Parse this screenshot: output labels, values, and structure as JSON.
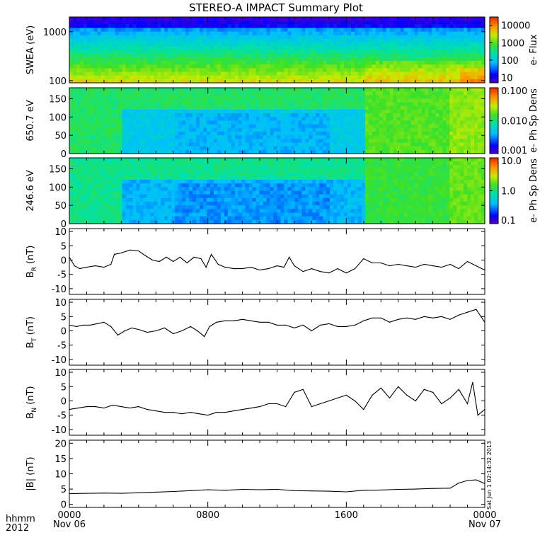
{
  "title": "STEREO-A IMPACT Summary Plot",
  "timestamp": "Sat Jun 1 02:14:32 2013",
  "x_axis": {
    "row1_label": "hhmm",
    "row2_label": "2012",
    "ticks": [
      {
        "hours": 0,
        "label": "0000",
        "sublabel": "Nov 06"
      },
      {
        "hours": 8,
        "label": "0800",
        "sublabel": ""
      },
      {
        "hours": 16,
        "label": "1600",
        "sublabel": ""
      },
      {
        "hours": 24,
        "label": "0000",
        "sublabel": "Nov 07"
      }
    ],
    "range_hours": [
      0,
      24
    ]
  },
  "chart_data": [
    {
      "type": "heatmap",
      "id": "swea",
      "ylabel": "SWEA (eV)",
      "yscale": "log",
      "ylim": [
        90,
        2000
      ],
      "yticks": [
        {
          "value": 100,
          "label": "100"
        },
        {
          "value": 1000,
          "label": "1000"
        }
      ],
      "colorbar": {
        "label": "e- Flux",
        "scale": "log",
        "range": [
          5,
          30000
        ],
        "ticks": [
          {
            "value": 10,
            "label": "10"
          },
          {
            "value": 100,
            "label": "100"
          },
          {
            "value": 1000,
            "label": "1000"
          },
          {
            "value": 10000,
            "label": "10000"
          }
        ]
      }
    },
    {
      "type": "heatmap",
      "id": "pad650",
      "ylabel": "650.7 eV",
      "ylim": [
        0,
        180
      ],
      "yticks": [
        {
          "value": 0,
          "label": "0"
        },
        {
          "value": 50,
          "label": "50"
        },
        {
          "value": 100,
          "label": "100"
        },
        {
          "value": 150,
          "label": "150"
        }
      ],
      "colorbar": {
        "label": "e- Ph Sp Dens",
        "scale": "log",
        "range": [
          0.001,
          0.1
        ],
        "ticks": [
          {
            "value": 0.001,
            "label": "0.001"
          },
          {
            "value": 0.01,
            "label": "0.010"
          },
          {
            "value": 0.1,
            "label": "0.100"
          }
        ]
      }
    },
    {
      "type": "heatmap",
      "id": "pad246",
      "ylabel": "246.6 eV",
      "ylim": [
        0,
        180
      ],
      "yticks": [
        {
          "value": 0,
          "label": "0"
        },
        {
          "value": 50,
          "label": "50"
        },
        {
          "value": 100,
          "label": "100"
        },
        {
          "value": 150,
          "label": "150"
        }
      ],
      "colorbar": {
        "label": "e- Ph Sp Dens",
        "scale": "log",
        "range": [
          0.1,
          10
        ],
        "ticks": [
          {
            "value": 0.1,
            "label": "0.1"
          },
          {
            "value": 1,
            "label": "1.0"
          },
          {
            "value": 10,
            "label": "10.0"
          }
        ]
      }
    },
    {
      "type": "line",
      "id": "br",
      "ylabel_main": "B",
      "ylabel_sub": "R",
      "ylabel_unit": " (nT)",
      "ylim": [
        -12,
        11
      ],
      "yticks": [
        {
          "value": -10,
          "label": "-10"
        },
        {
          "value": -5,
          "label": "-5"
        },
        {
          "value": 0,
          "label": "0"
        },
        {
          "value": 5,
          "label": "5"
        },
        {
          "value": 10,
          "label": "10"
        }
      ],
      "x": [
        0,
        0.3,
        0.6,
        1.0,
        1.5,
        2.0,
        2.4,
        2.6,
        3.0,
        3.5,
        4.0,
        4.4,
        4.8,
        5.2,
        5.6,
        6.0,
        6.4,
        6.8,
        7.2,
        7.6,
        7.9,
        8.2,
        8.6,
        9.0,
        9.5,
        10.0,
        10.5,
        11.0,
        11.5,
        12.0,
        12.4,
        12.7,
        13.0,
        13.5,
        14.0,
        14.5,
        15.0,
        15.5,
        16.0,
        16.5,
        17.0,
        17.5,
        18.0,
        18.5,
        19.0,
        19.5,
        20.0,
        20.5,
        21.0,
        21.5,
        22.0,
        22.5,
        23.0,
        23.5,
        24.0
      ],
      "values": [
        1,
        -2,
        -3,
        -2.5,
        -2,
        -2.5,
        -1.5,
        2,
        2.5,
        3.5,
        3.2,
        1.5,
        0,
        -0.5,
        1,
        -0.5,
        1,
        -1,
        1,
        0.5,
        -2.5,
        2,
        -1.5,
        -2.5,
        -3,
        -3,
        -2.5,
        -3.5,
        -3,
        -2,
        -2.5,
        1,
        -2,
        -4,
        -3,
        -4,
        -4.5,
        -3,
        -4.5,
        -3,
        0.5,
        -1,
        -1,
        -2,
        -1.5,
        -2,
        -2.5,
        -1.5,
        -2,
        -2.5,
        -1.5,
        -3,
        -0.5,
        -2,
        -3.5
      ]
    },
    {
      "type": "line",
      "id": "bt",
      "ylabel_main": "B",
      "ylabel_sub": "T",
      "ylabel_unit": " (nT)",
      "ylim": [
        -12,
        11
      ],
      "yticks": [
        {
          "value": -10,
          "label": "-10"
        },
        {
          "value": -5,
          "label": "-5"
        },
        {
          "value": 0,
          "label": "0"
        },
        {
          "value": 5,
          "label": "5"
        },
        {
          "value": 10,
          "label": "10"
        }
      ],
      "x": [
        0,
        0.4,
        0.8,
        1.2,
        1.6,
        2.0,
        2.4,
        2.8,
        3.2,
        3.6,
        4.0,
        4.5,
        5.0,
        5.5,
        6.0,
        6.5,
        7.0,
        7.4,
        7.8,
        8.1,
        8.5,
        9.0,
        9.5,
        10.0,
        10.5,
        11.0,
        11.5,
        12.0,
        12.5,
        13.0,
        13.5,
        14.0,
        14.5,
        15.0,
        15.5,
        16.0,
        16.5,
        17.0,
        17.5,
        18.0,
        18.5,
        19.0,
        19.5,
        20.0,
        20.5,
        21.0,
        21.5,
        22.0,
        22.5,
        23.0,
        23.5,
        24.0
      ],
      "values": [
        2,
        1.5,
        2,
        2,
        2.5,
        3,
        1.5,
        -1.5,
        0,
        1,
        0.5,
        -0.5,
        0,
        1,
        -1,
        0,
        1.5,
        0,
        -2,
        1.5,
        3,
        3.5,
        3.5,
        4,
        3.5,
        3,
        3,
        2,
        2,
        1,
        2,
        0,
        2,
        2.5,
        1.5,
        1.5,
        2,
        3.5,
        4.5,
        4.5,
        3,
        4,
        4.5,
        4,
        5,
        4.5,
        5,
        4,
        5.5,
        6.5,
        7.5,
        3
      ]
    },
    {
      "type": "line",
      "id": "bn",
      "ylabel_main": "B",
      "ylabel_sub": "N",
      "ylabel_unit": " (nT)",
      "ylim": [
        -12,
        11
      ],
      "yticks": [
        {
          "value": -10,
          "label": "-10"
        },
        {
          "value": -5,
          "label": "-5"
        },
        {
          "value": 0,
          "label": "0"
        },
        {
          "value": 5,
          "label": "5"
        },
        {
          "value": 10,
          "label": "10"
        }
      ],
      "x": [
        0,
        0.5,
        1.0,
        1.5,
        2.0,
        2.5,
        3.0,
        3.5,
        4.0,
        4.5,
        5.0,
        5.5,
        6.0,
        6.5,
        7.0,
        7.5,
        8.0,
        8.5,
        9.0,
        9.5,
        10.0,
        10.5,
        11.0,
        11.5,
        12.0,
        12.5,
        13.0,
        13.5,
        14.0,
        14.5,
        15.0,
        15.5,
        16.0,
        16.5,
        17.0,
        17.5,
        18.0,
        18.5,
        19.0,
        19.5,
        20.0,
        20.5,
        21.0,
        21.5,
        22.0,
        22.5,
        23.0,
        23.3,
        23.6,
        24.0
      ],
      "values": [
        -3,
        -2.5,
        -2,
        -2,
        -2.5,
        -1.5,
        -2,
        -2.5,
        -2,
        -3,
        -3.5,
        -4,
        -4,
        -4.5,
        -4,
        -4.5,
        -5,
        -4,
        -4,
        -3.5,
        -3,
        -2.5,
        -2,
        -1,
        -1,
        -2,
        3,
        4,
        -2,
        -1,
        0,
        1,
        2,
        0,
        -3,
        2,
        4.5,
        1,
        5,
        2,
        0,
        4,
        3,
        -1,
        1,
        4,
        -1,
        6.5,
        -5,
        -3
      ]
    },
    {
      "type": "line",
      "id": "bmag",
      "ylabel_main": "|B|",
      "ylabel_sub": "",
      "ylabel_unit": " (nT)",
      "ylim": [
        -1,
        21
      ],
      "yticks": [
        {
          "value": 0,
          "label": "0"
        },
        {
          "value": 5,
          "label": "5"
        },
        {
          "value": 10,
          "label": "10"
        },
        {
          "value": 15,
          "label": "15"
        },
        {
          "value": 20,
          "label": "20"
        }
      ],
      "x": [
        0,
        1,
        2,
        3,
        4,
        5,
        6,
        7,
        8,
        9,
        10,
        11,
        12,
        13,
        14,
        15,
        16,
        17,
        18,
        19,
        20,
        21,
        22,
        22.5,
        23,
        23.5,
        24
      ],
      "values": [
        3.5,
        3.6,
        3.7,
        3.6,
        3.8,
        4.0,
        4.2,
        4.5,
        4.8,
        4.6,
        4.9,
        4.8,
        4.9,
        4.5,
        4.4,
        4.3,
        4.1,
        4.6,
        4.7,
        4.9,
        5.0,
        5.2,
        5.3,
        7.0,
        7.8,
        8.0,
        6.8
      ]
    }
  ]
}
